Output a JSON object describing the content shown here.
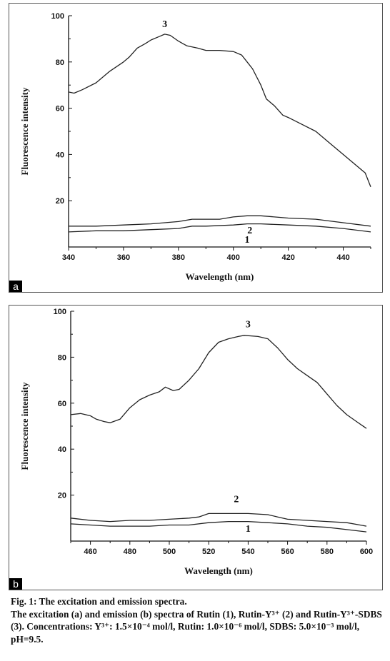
{
  "figure": {
    "caption_title": "Fig. 1: The excitation and emission spectra.",
    "caption_text": "The excitation (a) and emission (b) spectra of Rutin (1), Rutin-Y³⁺ (2) and Rutin-Y³⁺-SDBS (3). Concentrations: Y³⁺: 1.5×10⁻⁴ mol/l, Rutin: 1.0×10⁻⁶ mol/l, SDBS: 5.0×10⁻³ mol/l, pH=9.5."
  },
  "chart_data": [
    {
      "type": "line",
      "panel_label": "a",
      "title": "",
      "xlabel": "Wavelength (nm)",
      "ylabel": "Fluorescence intensity",
      "xlim": [
        340,
        450
      ],
      "ylim": [
        0,
        100
      ],
      "x_ticks": [
        340,
        360,
        380,
        400,
        420,
        440
      ],
      "y_ticks": [
        20,
        40,
        60,
        80,
        100
      ],
      "series": [
        {
          "label": "1",
          "color": "#222222",
          "points": [
            [
              340,
              6.5
            ],
            [
              350,
              7
            ],
            [
              360,
              7
            ],
            [
              370,
              7.5
            ],
            [
              380,
              8
            ],
            [
              385,
              9
            ],
            [
              390,
              9
            ],
            [
              400,
              9.5
            ],
            [
              405,
              10
            ],
            [
              410,
              10
            ],
            [
              420,
              9.5
            ],
            [
              430,
              9
            ],
            [
              440,
              8
            ],
            [
              450,
              6.5
            ]
          ]
        },
        {
          "label": "2",
          "color": "#222222",
          "points": [
            [
              340,
              9
            ],
            [
              350,
              9
            ],
            [
              360,
              9.5
            ],
            [
              370,
              10
            ],
            [
              380,
              11
            ],
            [
              385,
              12
            ],
            [
              395,
              12
            ],
            [
              400,
              13
            ],
            [
              405,
              13.5
            ],
            [
              410,
              13.5
            ],
            [
              420,
              12.5
            ],
            [
              430,
              12
            ],
            [
              440,
              10.5
            ],
            [
              450,
              9
            ]
          ]
        },
        {
          "label": "3",
          "color": "#222222",
          "points": [
            [
              340,
              67
            ],
            [
              342,
              66.5
            ],
            [
              345,
              68
            ],
            [
              350,
              71
            ],
            [
              355,
              76
            ],
            [
              360,
              80
            ],
            [
              362,
              82
            ],
            [
              365,
              86
            ],
            [
              368,
              88
            ],
            [
              370,
              89.5
            ],
            [
              373,
              91
            ],
            [
              375,
              92
            ],
            [
              377,
              91.5
            ],
            [
              380,
              89
            ],
            [
              383,
              87
            ],
            [
              387,
              86
            ],
            [
              390,
              85
            ],
            [
              395,
              85
            ],
            [
              400,
              84.5
            ],
            [
              403,
              83
            ],
            [
              405,
              80
            ],
            [
              407,
              77
            ],
            [
              410,
              70
            ],
            [
              412,
              64
            ],
            [
              415,
              61
            ],
            [
              418,
              57
            ],
            [
              420,
              56
            ],
            [
              425,
              53
            ],
            [
              430,
              50
            ],
            [
              435,
              45
            ],
            [
              440,
              40
            ],
            [
              445,
              35
            ],
            [
              448,
              32
            ],
            [
              450,
              26
            ]
          ]
        }
      ]
    },
    {
      "type": "line",
      "panel_label": "b",
      "title": "",
      "xlabel": "Wavelength (nm)",
      "ylabel": "Fluorescence intensity",
      "xlim": [
        450,
        600
      ],
      "ylim": [
        0,
        100
      ],
      "x_ticks": [
        460,
        480,
        500,
        520,
        540,
        560,
        580,
        600
      ],
      "y_ticks": [
        20,
        40,
        60,
        80,
        100
      ],
      "series": [
        {
          "label": "1",
          "color": "#222222",
          "points": [
            [
              450,
              7.5
            ],
            [
              460,
              7
            ],
            [
              470,
              6.5
            ],
            [
              480,
              6.5
            ],
            [
              490,
              6.5
            ],
            [
              500,
              7
            ],
            [
              510,
              7
            ],
            [
              520,
              8
            ],
            [
              530,
              8.5
            ],
            [
              540,
              8.5
            ],
            [
              550,
              8
            ],
            [
              560,
              7.5
            ],
            [
              570,
              6.5
            ],
            [
              580,
              6
            ],
            [
              590,
              5
            ],
            [
              600,
              4
            ]
          ]
        },
        {
          "label": "2",
          "color": "#222222",
          "points": [
            [
              450,
              10
            ],
            [
              460,
              9
            ],
            [
              470,
              8.5
            ],
            [
              480,
              9
            ],
            [
              490,
              9
            ],
            [
              500,
              9.5
            ],
            [
              510,
              10
            ],
            [
              515,
              10.5
            ],
            [
              520,
              12
            ],
            [
              530,
              12
            ],
            [
              540,
              12
            ],
            [
              550,
              11.5
            ],
            [
              555,
              10.5
            ],
            [
              560,
              9.5
            ],
            [
              570,
              9
            ],
            [
              580,
              8.5
            ],
            [
              590,
              8
            ],
            [
              600,
              6.5
            ]
          ]
        },
        {
          "label": "3",
          "color": "#222222",
          "points": [
            [
              450,
              55
            ],
            [
              455,
              55.5
            ],
            [
              460,
              54.5
            ],
            [
              463,
              53
            ],
            [
              467,
              52
            ],
            [
              470,
              51.5
            ],
            [
              475,
              53
            ],
            [
              480,
              58
            ],
            [
              485,
              61.5
            ],
            [
              490,
              63.5
            ],
            [
              495,
              65
            ],
            [
              498,
              67
            ],
            [
              502,
              65.5
            ],
            [
              505,
              66
            ],
            [
              510,
              70
            ],
            [
              515,
              75
            ],
            [
              520,
              82
            ],
            [
              525,
              86.5
            ],
            [
              530,
              88
            ],
            [
              535,
              89
            ],
            [
              538,
              89.5
            ],
            [
              545,
              89
            ],
            [
              550,
              88
            ],
            [
              555,
              84
            ],
            [
              560,
              79
            ],
            [
              565,
              75
            ],
            [
              570,
              72
            ],
            [
              575,
              69
            ],
            [
              580,
              64
            ],
            [
              585,
              59
            ],
            [
              590,
              55
            ],
            [
              595,
              52
            ],
            [
              600,
              49
            ]
          ]
        }
      ]
    }
  ]
}
